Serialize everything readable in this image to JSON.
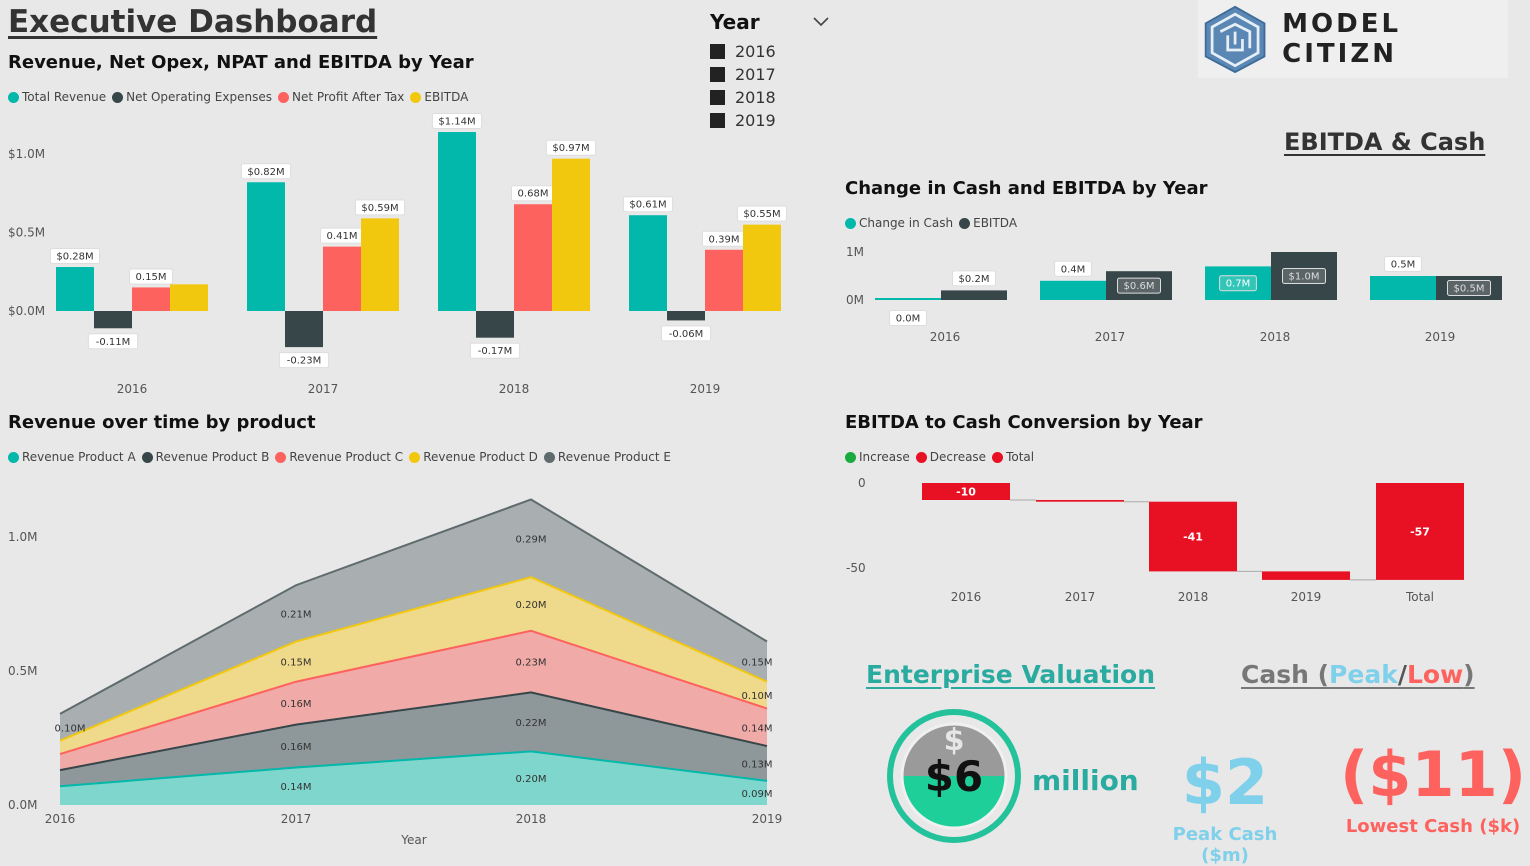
{
  "header": {
    "title": "Executive Dashboard"
  },
  "logo": {
    "text": "MODEL CITIZN",
    "icon": "maze-hexagon-icon"
  },
  "year_slicer": {
    "title": "Year",
    "items": [
      "2016",
      "2017",
      "2018",
      "2019"
    ]
  },
  "ebitda_cash_heading": "EBITDA & Cash",
  "colors": {
    "teal": "#01b8aa",
    "dark": "#374649",
    "salmon": "#fd625e",
    "yellow": "#f2c80f",
    "grey": "#5f6b6d",
    "green": "#1aab40",
    "red": "#e81123"
  },
  "chart_data": [
    {
      "id": "rev_opex",
      "type": "bar",
      "title": "Revenue, Net Opex, NPAT and EBITDA by Year",
      "categories": [
        "2016",
        "2017",
        "2018",
        "2019"
      ],
      "series": [
        {
          "name": "Total Revenue",
          "values": [
            0.28,
            0.82,
            1.14,
            0.61
          ],
          "labels": [
            "$0.28M",
            "$0.82M",
            "$1.14M",
            "$0.61M"
          ]
        },
        {
          "name": "Net Operating Expenses",
          "values": [
            -0.11,
            -0.23,
            -0.17,
            -0.06
          ],
          "labels": [
            "-0.11M",
            "-0.23M",
            "-0.17M",
            "-0.06M"
          ]
        },
        {
          "name": "Net Profit After Tax",
          "values": [
            0.15,
            0.41,
            0.68,
            0.39
          ],
          "labels": [
            "0.15M",
            "0.41M",
            "0.68M",
            "0.39M"
          ]
        },
        {
          "name": "EBITDA",
          "values": [
            0.17,
            0.59,
            0.97,
            0.55
          ],
          "labels": [
            "",
            "$0.59M",
            "$0.97M",
            "$0.55M"
          ]
        }
      ],
      "y_ticks": [
        "$0.0M",
        "$0.5M",
        "$1.0M"
      ]
    },
    {
      "id": "cash_ebitda",
      "type": "bar",
      "title": "Change in Cash and EBITDA by Year",
      "categories": [
        "2016",
        "2017",
        "2018",
        "2019"
      ],
      "series": [
        {
          "name": "Change in Cash",
          "values": [
            0.0,
            0.4,
            0.7,
            0.5
          ],
          "labels": [
            "0.0M",
            "0.4M",
            "0.7M",
            "0.5M"
          ]
        },
        {
          "name": "EBITDA",
          "values": [
            0.2,
            0.6,
            1.0,
            0.5
          ],
          "labels": [
            "$0.2M",
            "$0.6M",
            "$1.0M",
            "$0.5M"
          ]
        }
      ],
      "y_ticks": [
        "0M",
        "1M"
      ]
    },
    {
      "id": "rev_product",
      "type": "area",
      "title": "Revenue over time by product",
      "xlabel": "Year",
      "categories": [
        "2016",
        "2017",
        "2018",
        "2019"
      ],
      "series": [
        {
          "name": "Revenue Product A",
          "values": [
            0.07,
            0.14,
            0.2,
            0.09
          ],
          "labels": [
            "",
            "0.14M",
            "0.20M",
            "0.09M"
          ]
        },
        {
          "name": "Revenue Product B",
          "values": [
            0.06,
            0.16,
            0.22,
            0.13
          ],
          "labels": [
            "",
            "0.16M",
            "0.22M",
            "0.13M"
          ]
        },
        {
          "name": "Revenue Product C",
          "values": [
            0.06,
            0.16,
            0.23,
            0.14
          ],
          "labels": [
            "",
            "0.16M",
            "0.23M",
            "0.14M"
          ]
        },
        {
          "name": "Revenue Product D",
          "values": [
            0.05,
            0.15,
            0.2,
            0.1
          ],
          "labels": [
            "",
            "0.15M",
            "0.20M",
            "0.10M"
          ]
        },
        {
          "name": "Revenue Product E",
          "values": [
            0.1,
            0.21,
            0.29,
            0.15
          ],
          "labels": [
            "0.10M",
            "0.21M",
            "0.29M",
            "0.15M"
          ]
        }
      ],
      "y_ticks": [
        "0.0M",
        "0.5M",
        "1.0M"
      ],
      "ylim": [
        0,
        1.2
      ]
    },
    {
      "id": "waterfall",
      "type": "bar",
      "title": "EBITDA to Cash Conversion by Year",
      "legend": [
        "Increase",
        "Decrease",
        "Total"
      ],
      "categories": [
        "2016",
        "2017",
        "2018",
        "2019",
        "Total"
      ],
      "values": [
        -10,
        -1,
        -41,
        -5,
        -57
      ],
      "labels": [
        "-10",
        "",
        "-41",
        "",
        "-57"
      ],
      "y_ticks": [
        "0",
        "-50"
      ]
    }
  ],
  "valuation": {
    "heading": "Enterprise Valuation",
    "value": "$6",
    "unit": "million",
    "icon": "dollar-gauge-icon"
  },
  "cash_kpi": {
    "heading_cash": "Cash ",
    "heading_open": "(",
    "heading_peak": "Peak",
    "heading_sep": "/",
    "heading_low": "Low",
    "heading_close": ")",
    "peak_value": "$2",
    "peak_label": "Peak Cash ($m)",
    "low_value": "($11)",
    "low_label": "Lowest Cash ($k)"
  }
}
